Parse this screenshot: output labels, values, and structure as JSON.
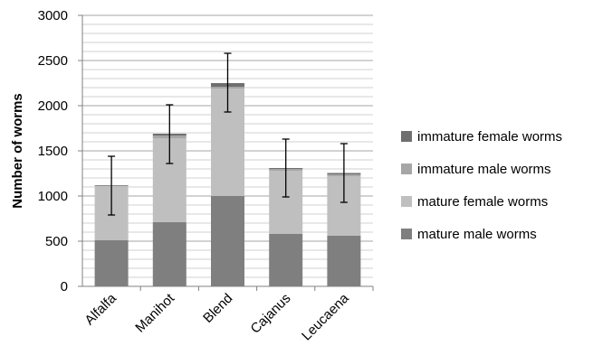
{
  "chart_data": {
    "type": "bar",
    "stacked": true,
    "title": "",
    "xlabel": "",
    "ylabel": "Number of worms",
    "ylim": [
      0,
      3000
    ],
    "yticks": [
      0,
      500,
      1000,
      1500,
      2000,
      2500,
      3000
    ],
    "minor_gridlines": true,
    "legend_position": "right",
    "categories": [
      "Alfalfa",
      "Manihot",
      "Blend",
      "Cajanus",
      "Leucaena"
    ],
    "series": [
      {
        "name": "mature male worms",
        "color": "#7f7f7f",
        "values": [
          510,
          710,
          1000,
          580,
          560
        ]
      },
      {
        "name": "mature female worms",
        "color": "#bfbfbf",
        "values": [
          600,
          930,
          1190,
          700,
          660
        ]
      },
      {
        "name": "immature male worms",
        "color": "#a6a6a6",
        "values": [
          5,
          30,
          20,
          20,
          20
        ]
      },
      {
        "name": "immature female worms",
        "color": "#6f6f6f",
        "values": [
          5,
          20,
          40,
          10,
          15
        ]
      }
    ],
    "error_bars": {
      "lower": [
        790,
        1360,
        1930,
        990,
        930
      ],
      "upper": [
        1440,
        2010,
        2580,
        1630,
        1580
      ]
    },
    "legend_order": [
      "immature female worms",
      "immature male worms",
      "mature female worms",
      "mature male worms"
    ]
  }
}
